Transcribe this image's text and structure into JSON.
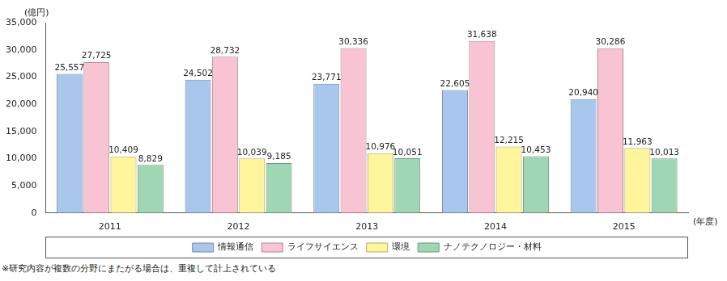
{
  "chart_data": {
    "type": "bar",
    "ylabel": "(億円)",
    "xlabel": "(年度)",
    "annotations": [
      "※研究内容が複数の分野にまたがる場合は、重複して計上されている"
    ],
    "categories": [
      "2011",
      "2012",
      "2013",
      "2014",
      "2015"
    ],
    "series": [
      {
        "name": "情報通信",
        "color": "#a9c6ec",
        "values": [
          25557,
          24502,
          23771,
          22605,
          20940
        ],
        "value_labels": [
          "25,557",
          "24,502",
          "23,771",
          "22,605",
          "20,940"
        ]
      },
      {
        "name": "ライフサイエンス",
        "color": "#f8c3d2",
        "values": [
          27725,
          28732,
          30336,
          31638,
          30286
        ],
        "value_labels": [
          "27,725",
          "28,732",
          "30,336",
          "31,638",
          "30,286"
        ]
      },
      {
        "name": "環境",
        "color": "#fff59d",
        "values": [
          10409,
          10039,
          10976,
          12215,
          11963
        ],
        "value_labels": [
          "10,409",
          "10,039",
          "10,976",
          "12,215",
          "11,963"
        ]
      },
      {
        "name": "ナノテクノロジー・材料",
        "color": "#9fd6b4",
        "values": [
          8829,
          9185,
          10051,
          10453,
          10013
        ],
        "value_labels": [
          "8,829",
          "9,185",
          "10,051",
          "10,453",
          "10,013"
        ]
      }
    ],
    "ylim": [
      0,
      35000
    ],
    "yticks": [
      0,
      {
        "value": 5000,
        "label": "5,000"
      },
      {
        "value": 10000,
        "label": "10,000"
      },
      {
        "value": 15000,
        "label": "15,000"
      },
      {
        "value": 20000,
        "label": "20,000"
      },
      {
        "value": 25000,
        "label": "25,000"
      },
      {
        "value": 30000,
        "label": "30,000"
      },
      {
        "value": 35000,
        "label": "35,000"
      }
    ],
    "grid": false,
    "legend": "bottom",
    "data_labels": true
  }
}
